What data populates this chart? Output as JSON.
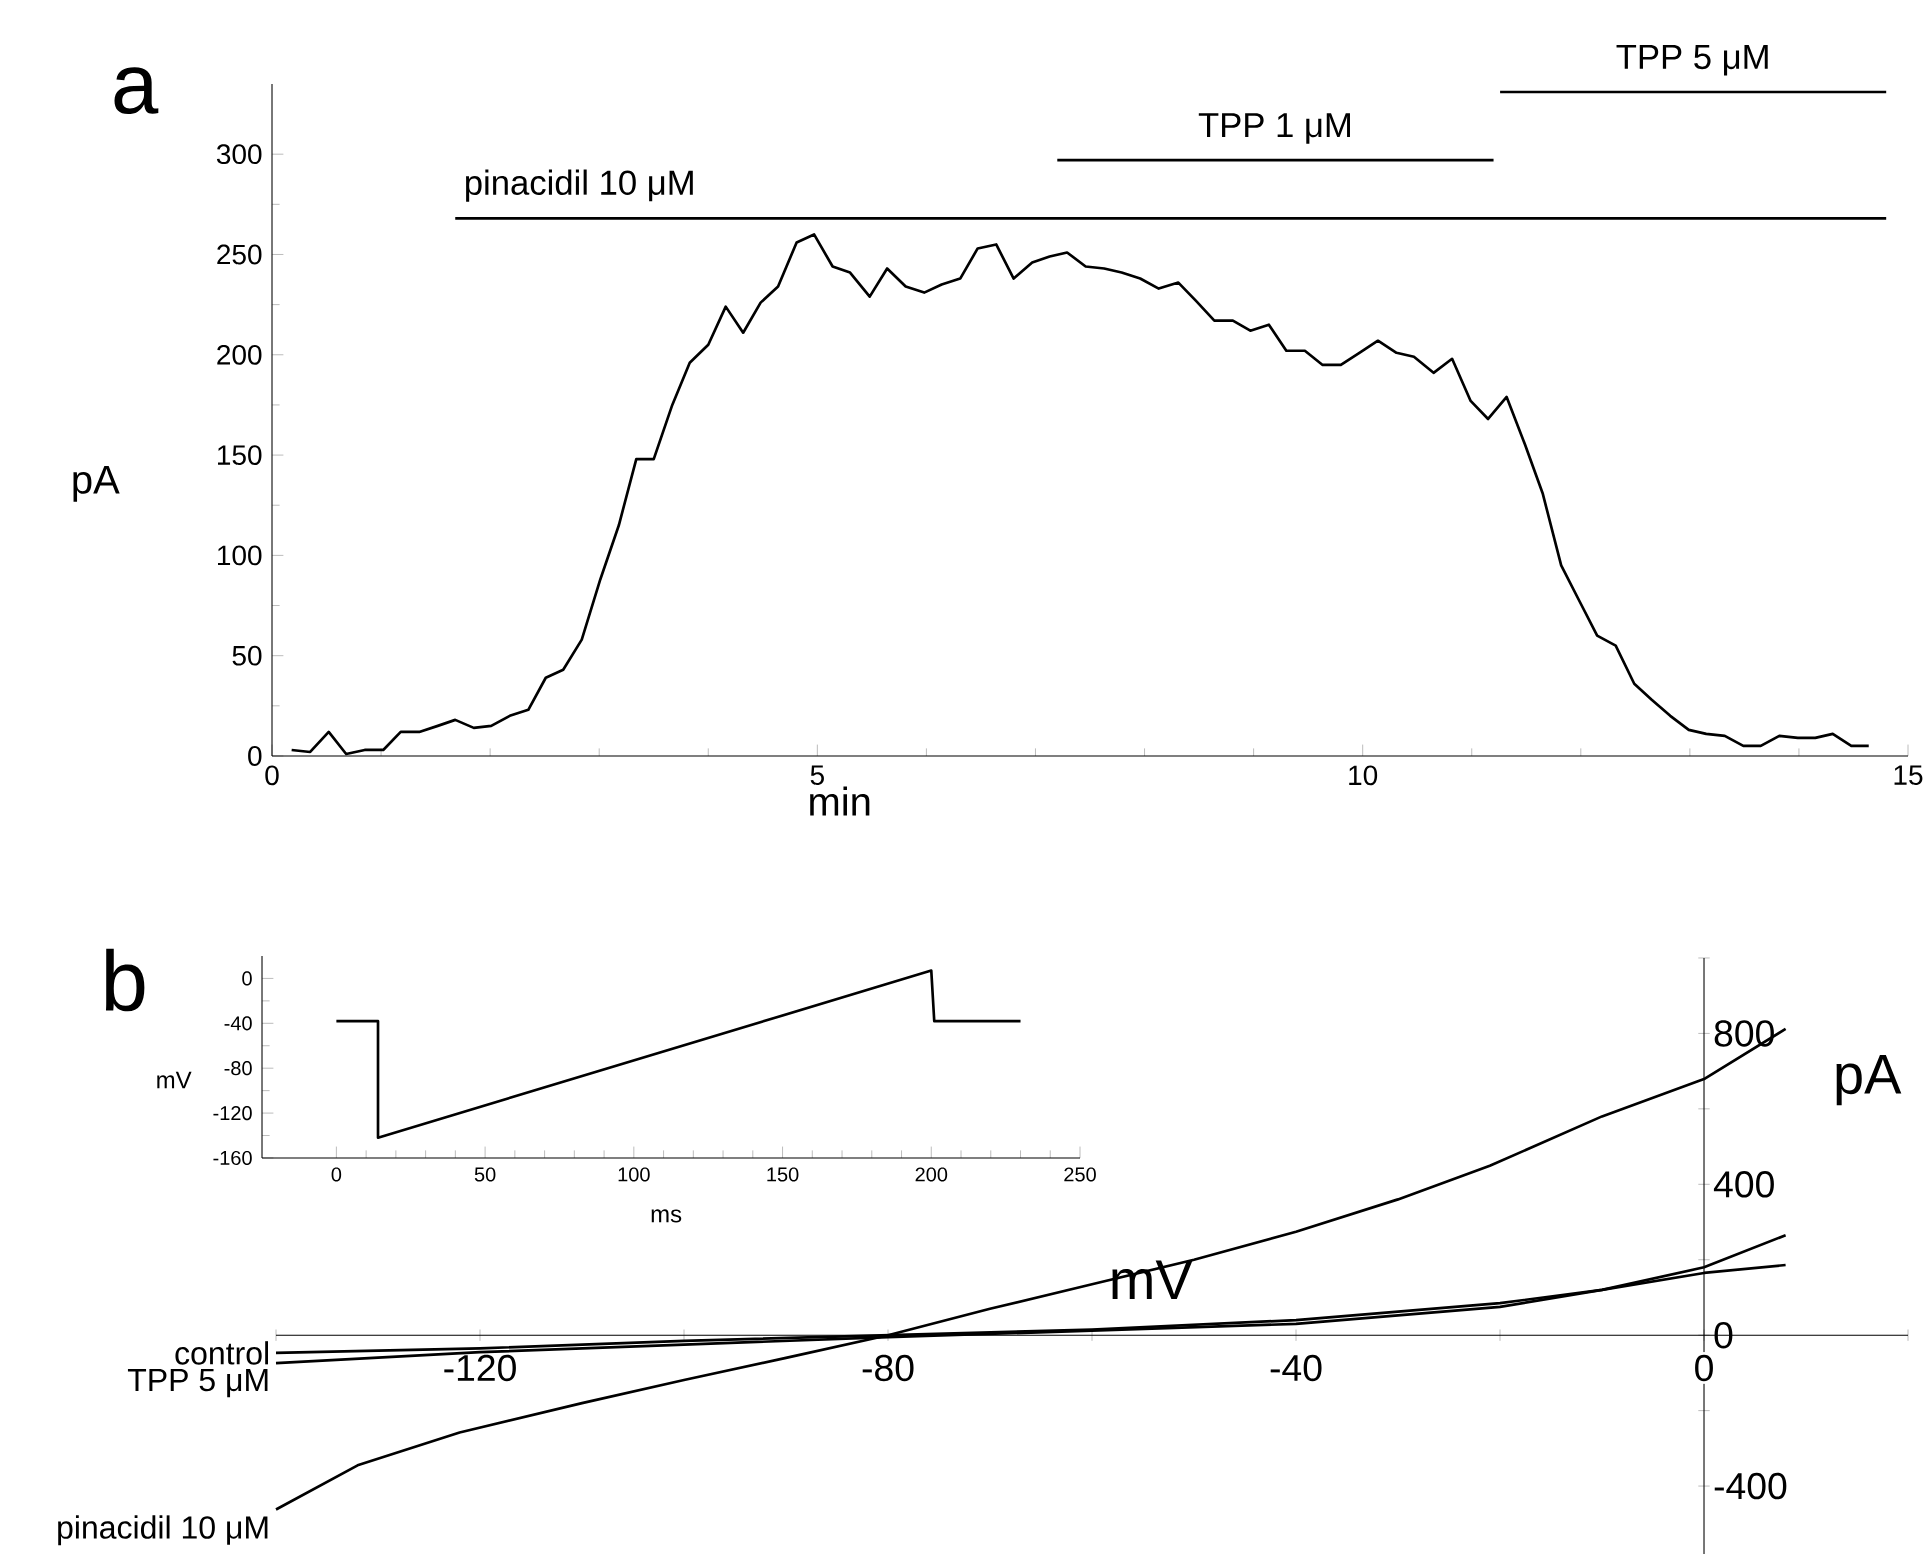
{
  "chart_data": [
    {
      "type": "line",
      "xlabel": "min",
      "ylabel": "pA",
      "annotations": [
        "a"
      ],
      "xlim": [
        0,
        15
      ],
      "xticks": [
        0,
        5,
        10,
        15
      ],
      "ylim": [
        0,
        335
      ],
      "yticks": [
        0,
        50,
        100,
        150,
        200,
        250,
        300
      ],
      "series": [
        {
          "color": "#000000",
          "x": [
            0.18,
            0.35,
            0.52,
            0.68,
            0.85,
            1.02,
            1.18,
            1.35,
            1.52,
            1.68,
            1.85,
            2.01,
            2.18,
            2.35,
            2.51,
            2.67,
            2.84,
            3.01,
            3.18,
            3.34,
            3.5,
            3.67,
            3.83,
            4.0,
            4.16,
            4.32,
            4.48,
            4.64,
            4.81,
            4.97,
            5.14,
            5.3,
            5.48,
            5.64,
            5.81,
            5.98,
            6.14,
            6.31,
            6.47,
            6.64,
            6.8,
            6.97,
            7.13,
            7.29,
            7.46,
            7.63,
            7.79,
            7.96,
            8.13,
            8.31,
            8.47,
            8.64,
            8.81,
            8.97,
            9.14,
            9.3,
            9.47,
            9.63,
            9.8,
            9.97,
            10.14,
            10.31,
            10.47,
            10.65,
            10.82,
            10.99,
            11.15,
            11.32,
            11.49,
            11.65,
            11.82,
            11.98,
            12.15,
            12.32,
            12.49,
            12.65,
            12.82,
            12.99,
            13.15,
            13.32,
            13.49,
            13.65,
            13.82,
            13.99,
            14.15,
            14.31,
            14.48,
            14.64
          ],
          "values": [
            3,
            2,
            12,
            1,
            3,
            3,
            12,
            12,
            15,
            18,
            14,
            15,
            20,
            23,
            39,
            43,
            58,
            88,
            115,
            148,
            148,
            175,
            196,
            205,
            224,
            211,
            226,
            234,
            256,
            260,
            244,
            241,
            229,
            243,
            234,
            231,
            235,
            238,
            253,
            255,
            238,
            246,
            249,
            251,
            244,
            243,
            241,
            238,
            233,
            236,
            227,
            217,
            217,
            212,
            215,
            202,
            202,
            195,
            195,
            201,
            207,
            201,
            199,
            191,
            198,
            177,
            168,
            179,
            155,
            131,
            95,
            78,
            60,
            55,
            36,
            28,
            20,
            13,
            11,
            10,
            5,
            5,
            10,
            9,
            9,
            11,
            5,
            5
          ]
        },
        {
          "name": "pinacidil 10 μM",
          "color": "#000000",
          "x": [
            1.68,
            14.8
          ],
          "values": [
            268,
            268
          ]
        },
        {
          "name": "TPP 1 μM",
          "color": "#000000",
          "x": [
            7.2,
            11.2
          ],
          "values": [
            297,
            297
          ]
        },
        {
          "name": "TPP 5 μM",
          "color": "#000000",
          "x": [
            11.26,
            14.8
          ],
          "values": [
            331,
            331
          ]
        }
      ]
    },
    {
      "type": "line",
      "xlabel": "mV",
      "ylabel": "pA",
      "annotations": [
        "b"
      ],
      "xlim": [
        -140,
        20
      ],
      "xticks": [
        {
          "value": -140,
          "label": null
        },
        -120,
        {
          "value": -100,
          "label": null
        },
        -80,
        {
          "value": -60,
          "label": null
        },
        -40,
        {
          "value": -20,
          "label": null
        },
        0,
        {
          "value": 20,
          "label": null
        }
      ],
      "ylim": [
        -580,
        1000
      ],
      "yticks": [
        -400,
        {
          "value": -200,
          "label": null
        },
        0,
        {
          "value": 200,
          "label": null
        },
        400,
        {
          "value": 600,
          "label": null
        },
        800,
        {
          "value": 1000,
          "label": null
        }
      ],
      "series": [
        {
          "name": "control",
          "color": "#000000",
          "x": [
            -140,
            -120,
            -100,
            -80,
            -60,
            -40,
            -20,
            -10,
            0,
            8
          ],
          "values": [
            -47,
            -35,
            -15,
            0,
            15,
            40,
            85,
            120,
            165,
            186
          ]
        },
        {
          "name": "TPP 5 μM",
          "color": "#000000",
          "x": [
            -140,
            -120,
            -100,
            -80,
            -60,
            -40,
            -20,
            -10,
            0,
            8
          ],
          "values": [
            -74,
            -45,
            -25,
            -5,
            12,
            30,
            75,
            120,
            180,
            265
          ]
        },
        {
          "name": "pinacidil 10 μM",
          "color": "#000000",
          "x": [
            -140,
            -132,
            -122,
            -110,
            -100,
            -90,
            -80,
            -70,
            -60,
            -50,
            -40,
            -30,
            -21,
            -10,
            0,
            8
          ],
          "values": [
            -462,
            -345,
            -258,
            -180,
            -119,
            -60,
            0,
            70,
            135,
            200,
            274,
            360,
            449,
            580,
            679,
            812
          ]
        }
      ]
    },
    {
      "type": "line",
      "xlabel": "ms",
      "ylabel": "mV",
      "xlim": [
        -25,
        250
      ],
      "xticks": [
        0,
        50,
        100,
        150,
        200,
        250
      ],
      "ylim": [
        -160,
        20
      ],
      "yticks": [
        -160,
        -120,
        -80,
        -40,
        0
      ],
      "series": [
        {
          "color": "#000000",
          "x": [
            0,
            14,
            14,
            200,
            201,
            230
          ],
          "values": [
            -38,
            -38,
            -142,
            7,
            -38,
            -38
          ]
        }
      ]
    }
  ]
}
